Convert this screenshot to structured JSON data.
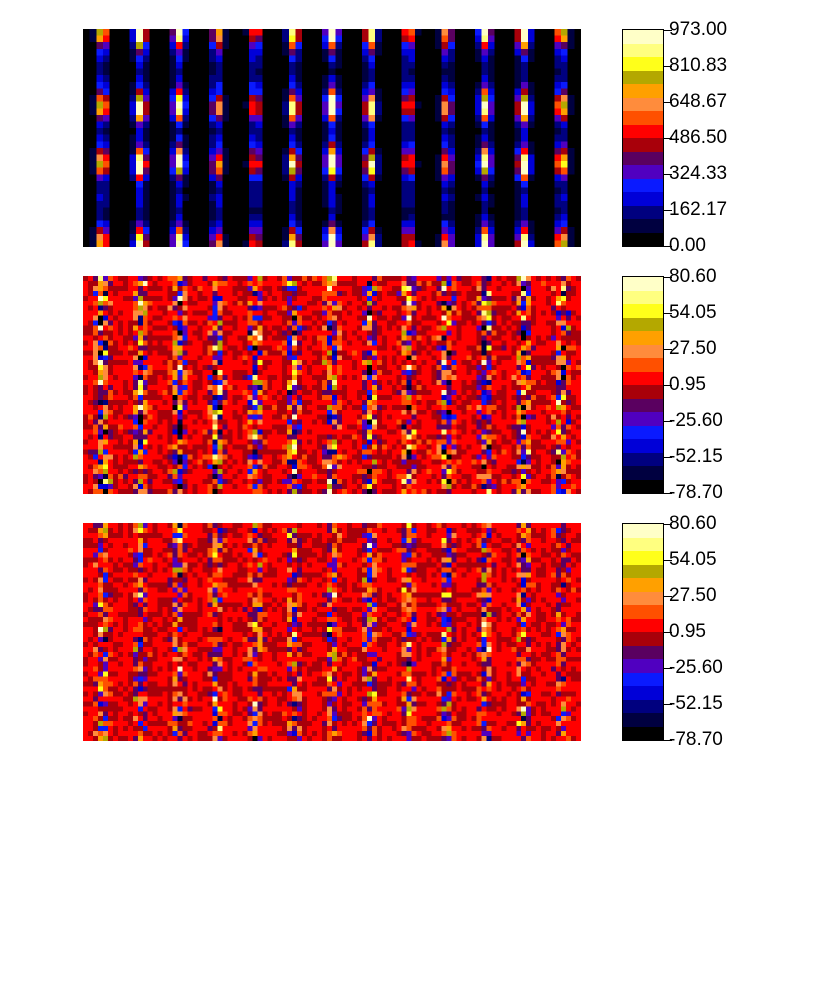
{
  "colormap": [
    "#000000",
    "#000040",
    "#00007f",
    "#0000d8",
    "#0a1aff",
    "#5000c0",
    "#5a0060",
    "#a8000a",
    "#ff0000",
    "#ff5000",
    "#ff8c3c",
    "#ffa000",
    "#b4a800",
    "#ffff1a",
    "#ffff80",
    "#ffffc8"
  ],
  "chart_data": [
    {
      "type": "heatmap",
      "description_grid": {
        "columns": 75,
        "rows": 33
      },
      "colorbar": {
        "min": 0.0,
        "max": 973.0,
        "tick_labels": [
          "973.00",
          "810.83",
          "648.67",
          "486.50",
          "324.33",
          "162.17",
          "0.00"
        ]
      },
      "pattern": {
        "stripe_columns": 13,
        "spot_rows_normalized": [
          0.02,
          0.35,
          0.61,
          0.98
        ],
        "spot_peak": 960,
        "background": 15
      }
    },
    {
      "type": "heatmap",
      "description_grid": {
        "columns": 100,
        "rows": 44
      },
      "colorbar": {
        "min": -78.7,
        "max": 80.6,
        "tick_labels": [
          "80.60",
          "54.05",
          "27.50",
          "0.95",
          "-25.60",
          "-52.15",
          "-78.70"
        ]
      },
      "pattern": {
        "stripe_columns": 13,
        "noise_in_stripe": 40,
        "noise_between": 4
      }
    },
    {
      "type": "heatmap",
      "description_grid": {
        "columns": 100,
        "rows": 44
      },
      "colorbar": {
        "min": -78.7,
        "max": 80.6,
        "tick_labels": [
          "80.60",
          "54.05",
          "27.50",
          "0.95",
          "-25.60",
          "-52.15",
          "-78.70"
        ]
      },
      "pattern": {
        "stripe_columns": 13,
        "noise_in_stripe": 28,
        "noise_between": 3
      }
    }
  ]
}
